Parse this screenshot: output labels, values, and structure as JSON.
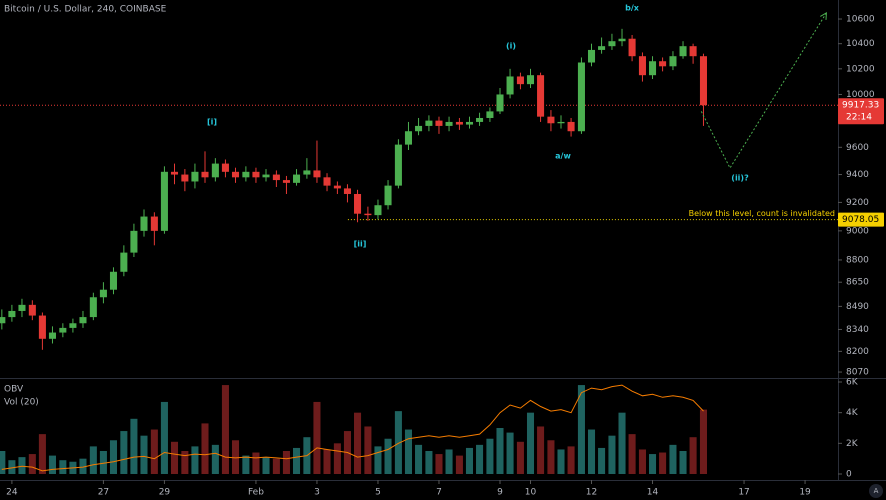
{
  "chart_data": {
    "type": "candlestick",
    "title": "Bitcoin / U.S. Dollar, 240, COINBASE",
    "x": [
      -0.33,
      0,
      0.33,
      0.67,
      1,
      1.33,
      1.67,
      2,
      2.33,
      2.67,
      3,
      3.33,
      3.67,
      4,
      4.33,
      4.67,
      5,
      5.33,
      5.67,
      6,
      6.33,
      6.67,
      7,
      7.33,
      7.67,
      8,
      8.33,
      8.67,
      9,
      9.33,
      9.67,
      10,
      10.33,
      10.67,
      11,
      11.33,
      11.67,
      12,
      12.33,
      12.67,
      13,
      13.33,
      13.67,
      14,
      14.33,
      14.67,
      15,
      15.33,
      15.67,
      16,
      16.33,
      16.67,
      17,
      17.33,
      17.67,
      18,
      18.33,
      18.67,
      19,
      19.33,
      19.67,
      20,
      20.33,
      20.67,
      21,
      21.33,
      21.67,
      22,
      22.33,
      22.67
    ],
    "open": [
      8380,
      8420,
      8460,
      8500,
      8430,
      8280,
      8320,
      8350,
      8380,
      8420,
      8550,
      8600,
      8720,
      8850,
      9000,
      9100,
      9000,
      9420,
      9400,
      9350,
      9420,
      9380,
      9480,
      9420,
      9380,
      9420,
      9380,
      9400,
      9360,
      9340,
      9400,
      9430,
      9380,
      9320,
      9300,
      9260,
      9120,
      9110,
      9180,
      9320,
      9620,
      9720,
      9760,
      9800,
      9760,
      9790,
      9770,
      9790,
      9820,
      9870,
      10000,
      10140,
      10080,
      10150,
      9830,
      9780,
      9790,
      9720,
      10250,
      10350,
      10380,
      10420,
      10440,
      10300,
      10150,
      10260,
      10220,
      10300,
      10380,
      10300
    ],
    "high": [
      8470,
      8500,
      8540,
      8530,
      8450,
      8360,
      8380,
      8410,
      8460,
      8580,
      8650,
      8750,
      8900,
      9050,
      9150,
      9130,
      9460,
      9480,
      9440,
      9480,
      9570,
      9520,
      9510,
      9450,
      9460,
      9450,
      9440,
      9430,
      9390,
      9440,
      9520,
      9650,
      9410,
      9350,
      9330,
      9290,
      9170,
      9220,
      9360,
      9660,
      9790,
      9820,
      9840,
      9830,
      9830,
      9820,
      9830,
      9860,
      9900,
      10050,
      10200,
      10170,
      10200,
      10170,
      9880,
      9840,
      9820,
      10290,
      10400,
      10450,
      10480,
      10520,
      10470,
      10330,
      10300,
      10290,
      10340,
      10420,
      10400,
      10320
    ],
    "low": [
      8340,
      8390,
      8420,
      8400,
      8210,
      8250,
      8290,
      8320,
      8350,
      8400,
      8510,
      8570,
      8690,
      8820,
      8960,
      8900,
      8980,
      9330,
      9280,
      9300,
      9340,
      9350,
      9380,
      9340,
      9350,
      9340,
      9350,
      9310,
      9260,
      9320,
      9370,
      9340,
      9280,
      9260,
      9200,
      9060,
      9070,
      9080,
      9150,
      9300,
      9580,
      9690,
      9720,
      9700,
      9720,
      9730,
      9740,
      9760,
      9790,
      9850,
      9970,
      10040,
      10050,
      9790,
      9720,
      9740,
      9680,
      9700,
      10220,
      10320,
      10350,
      10380,
      10260,
      10100,
      10120,
      10180,
      10190,
      10280,
      10240,
      9760
    ],
    "close": [
      8420,
      8460,
      8500,
      8430,
      8280,
      8320,
      8350,
      8380,
      8420,
      8550,
      8600,
      8720,
      8850,
      9000,
      9100,
      9000,
      9420,
      9400,
      9350,
      9420,
      9380,
      9480,
      9420,
      9380,
      9420,
      9380,
      9400,
      9360,
      9340,
      9400,
      9430,
      9380,
      9320,
      9300,
      9260,
      9120,
      9110,
      9180,
      9320,
      9620,
      9720,
      9760,
      9800,
      9760,
      9790,
      9770,
      9790,
      9820,
      9870,
      10000,
      10140,
      10080,
      10150,
      9830,
      9780,
      9790,
      9720,
      10250,
      10350,
      10380,
      10420,
      10440,
      10300,
      10150,
      10260,
      10220,
      10300,
      10380,
      10300,
      9917.33
    ],
    "up_color": "#4caf50",
    "down_color": "#e53935",
    "xlim": [
      -0.39,
      27.08
    ],
    "xticks": [
      {
        "value": 0,
        "label": "24"
      },
      {
        "value": 3,
        "label": "27"
      },
      {
        "value": 5,
        "label": "29"
      },
      {
        "value": 8,
        "label": "Feb"
      },
      {
        "value": 10,
        "label": "3"
      },
      {
        "value": 12,
        "label": "5"
      },
      {
        "value": 14,
        "label": "7"
      },
      {
        "value": 16,
        "label": "9"
      },
      {
        "value": 17,
        "label": "10"
      },
      {
        "value": 19,
        "label": "12"
      },
      {
        "value": 21,
        "label": "14"
      },
      {
        "value": 24,
        "label": "17"
      },
      {
        "value": 26,
        "label": "19"
      }
    ],
    "ylim": [
      8033,
      10757
    ],
    "yticks": [
      10600,
      10400,
      10200,
      10000,
      9600,
      9400,
      9200,
      9000,
      8800,
      8650,
      8490,
      8340,
      8200,
      8070
    ],
    "log_scale": true,
    "grid": false,
    "last_price": 9917.33,
    "countdown": "22:14",
    "invalidation": {
      "value": 9078.05,
      "text": "Below this level, count is invalidated"
    },
    "annotations": [
      "[i]",
      "(i)",
      "b/x",
      "a/w",
      "[ii]",
      "(ii)?"
    ],
    "projection": {
      "x": [
        22.6,
        23.54,
        26.7
      ],
      "values": [
        9870,
        9448,
        10650
      ],
      "color": "#4caf50"
    },
    "volume": {
      "name": "Vol (20)",
      "up_color": "#1f6360",
      "down_color": "#6e1c1c",
      "values": [
        1500,
        900,
        1100,
        1300,
        2600,
        1200,
        900,
        800,
        1000,
        1800,
        1500,
        2200,
        2800,
        3600,
        2500,
        2900,
        4700,
        2100,
        1500,
        1800,
        3300,
        1900,
        5800,
        2200,
        1200,
        1400,
        1100,
        1000,
        1500,
        1700,
        2400,
        4700,
        1600,
        2000,
        2800,
        4000,
        3100,
        1800,
        2300,
        4100,
        2900,
        1900,
        1500,
        1300,
        1600,
        1200,
        1700,
        1900,
        2300,
        3000,
        2700,
        2100,
        4000,
        3100,
        2200,
        1600,
        1800,
        5800,
        2900,
        1700,
        2500,
        4000,
        2600,
        1600,
        1300,
        1400,
        1900,
        1500,
        2400,
        4200
      ],
      "ylim": [
        -261,
        6261
      ],
      "yticks": [
        {
          "value": 6000,
          "label": "6K"
        },
        {
          "value": 4000,
          "label": "4K"
        },
        {
          "value": 2000,
          "label": "2K"
        },
        0
      ]
    },
    "obv": {
      "name": "OBV",
      "color": "#f57c00",
      "values": [
        300,
        400,
        500,
        450,
        200,
        300,
        350,
        400,
        450,
        600,
        700,
        800,
        950,
        1100,
        1150,
        1000,
        1400,
        1300,
        1200,
        1300,
        1250,
        1350,
        1100,
        1050,
        1100,
        1050,
        1100,
        1050,
        1000,
        1100,
        1200,
        1700,
        1600,
        1500,
        1400,
        1100,
        1200,
        1400,
        1600,
        2000,
        2300,
        2400,
        2500,
        2400,
        2500,
        2400,
        2500,
        2600,
        3200,
        4000,
        4500,
        4300,
        4800,
        4400,
        4100,
        4200,
        4000,
        5300,
        5600,
        5500,
        5700,
        5800,
        5400,
        5100,
        5200,
        5000,
        5100,
        5000,
        4800,
        4100
      ]
    }
  }
}
